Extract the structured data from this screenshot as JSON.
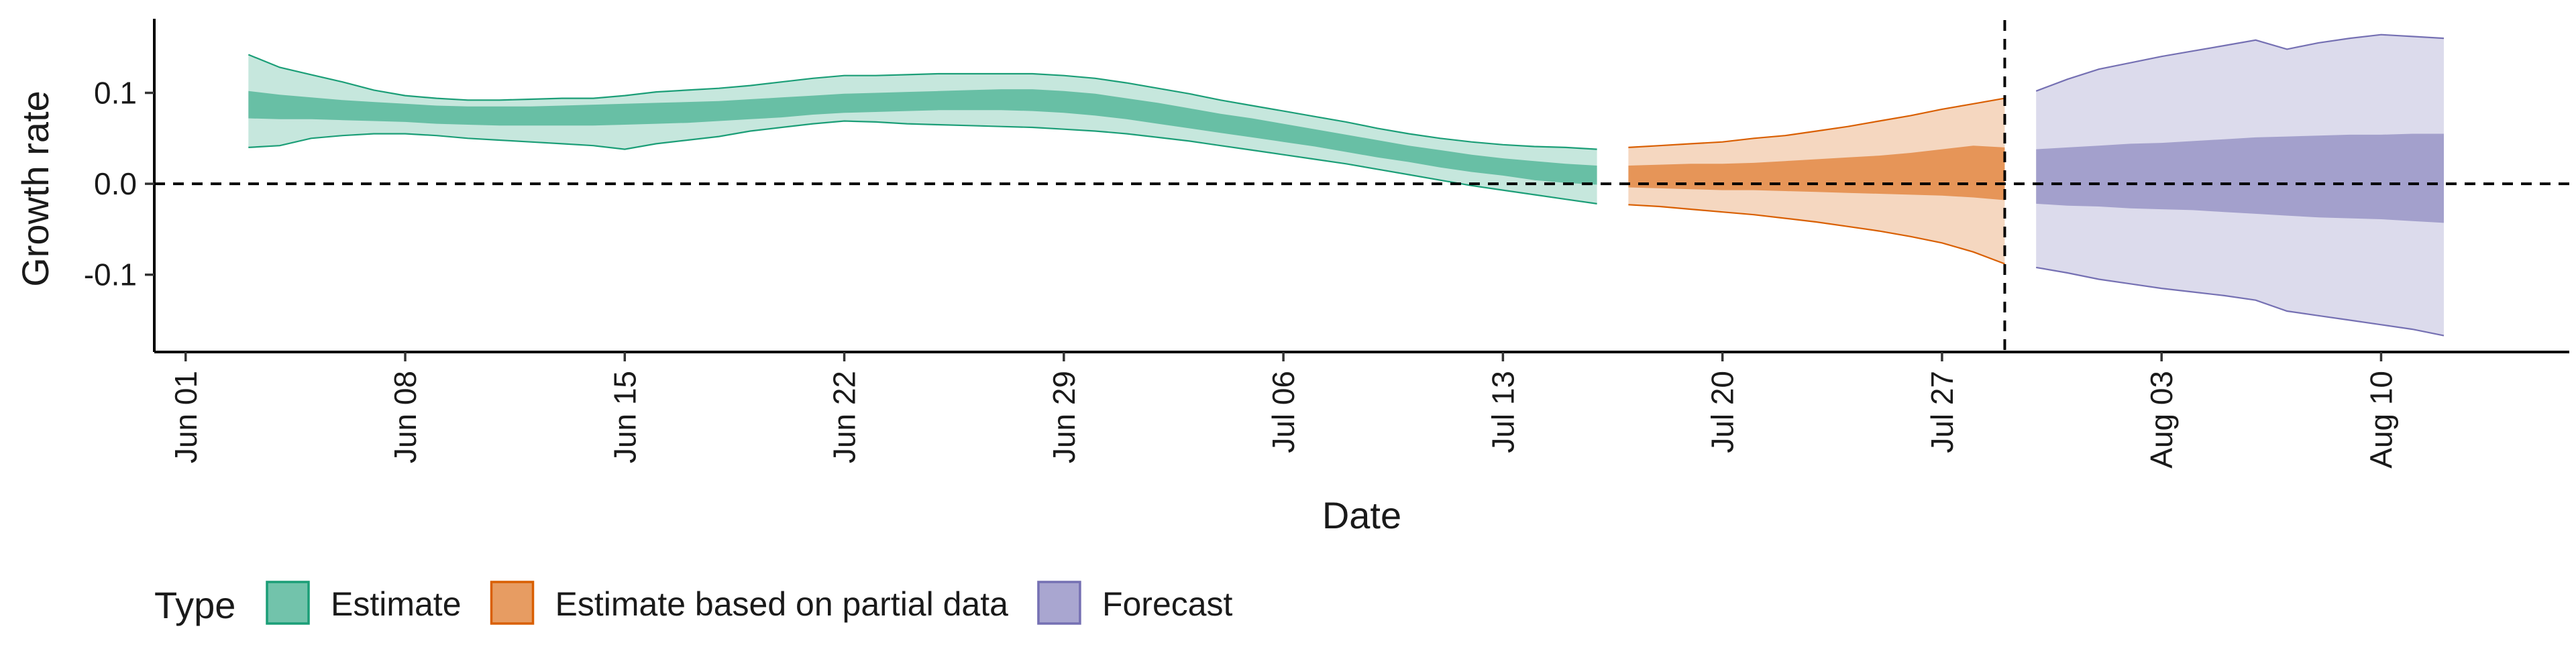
{
  "chart_data": {
    "type": "area",
    "title": "",
    "xlabel": "Date",
    "ylabel": "Growth rate",
    "x_range": [
      "2020-05-31",
      "2020-08-16"
    ],
    "ylim": [
      -0.185,
      0.18
    ],
    "y_ticks": [
      -0.1,
      0.0,
      0.1
    ],
    "y_tick_labels": [
      "-0.1",
      "0.0",
      "0.1"
    ],
    "x_ticks": [
      "2020-06-01",
      "2020-06-08",
      "2020-06-15",
      "2020-06-22",
      "2020-06-29",
      "2020-07-06",
      "2020-07-13",
      "2020-07-20",
      "2020-07-27",
      "2020-08-03",
      "2020-08-10"
    ],
    "x_tick_labels": [
      "Jun 01",
      "Jun 08",
      "Jun 15",
      "Jun 22",
      "Jun 29",
      "Jul 06",
      "Jul 13",
      "Jul 20",
      "Jul 27",
      "Aug 03",
      "Aug 10"
    ],
    "reference_lines": {
      "horizontal_y": 0.0,
      "vertical_x": "2020-07-29"
    },
    "grid": false,
    "legend_position": "bottom",
    "legend_title": "Type",
    "series": [
      {
        "name": "Estimate",
        "fill": "#1B9E77",
        "stroke": "#1B9E77",
        "points": [
          {
            "x": "2020-06-03",
            "outer_lower": 0.04,
            "inner_lower": 0.072,
            "inner_upper": 0.102,
            "outer_upper": 0.142
          },
          {
            "x": "2020-06-04",
            "outer_lower": 0.042,
            "inner_lower": 0.071,
            "inner_upper": 0.098,
            "outer_upper": 0.128
          },
          {
            "x": "2020-06-05",
            "outer_lower": 0.05,
            "inner_lower": 0.071,
            "inner_upper": 0.095,
            "outer_upper": 0.12
          },
          {
            "x": "2020-06-06",
            "outer_lower": 0.053,
            "inner_lower": 0.07,
            "inner_upper": 0.092,
            "outer_upper": 0.112
          },
          {
            "x": "2020-06-07",
            "outer_lower": 0.055,
            "inner_lower": 0.069,
            "inner_upper": 0.09,
            "outer_upper": 0.103
          },
          {
            "x": "2020-06-08",
            "outer_lower": 0.055,
            "inner_lower": 0.068,
            "inner_upper": 0.088,
            "outer_upper": 0.097
          },
          {
            "x": "2020-06-09",
            "outer_lower": 0.053,
            "inner_lower": 0.066,
            "inner_upper": 0.086,
            "outer_upper": 0.094
          },
          {
            "x": "2020-06-10",
            "outer_lower": 0.05,
            "inner_lower": 0.065,
            "inner_upper": 0.085,
            "outer_upper": 0.092
          },
          {
            "x": "2020-06-11",
            "outer_lower": 0.048,
            "inner_lower": 0.064,
            "inner_upper": 0.085,
            "outer_upper": 0.092
          },
          {
            "x": "2020-06-12",
            "outer_lower": 0.046,
            "inner_lower": 0.064,
            "inner_upper": 0.085,
            "outer_upper": 0.093
          },
          {
            "x": "2020-06-13",
            "outer_lower": 0.044,
            "inner_lower": 0.064,
            "inner_upper": 0.086,
            "outer_upper": 0.094
          },
          {
            "x": "2020-06-14",
            "outer_lower": 0.042,
            "inner_lower": 0.064,
            "inner_upper": 0.087,
            "outer_upper": 0.094
          },
          {
            "x": "2020-06-15",
            "outer_lower": 0.038,
            "inner_lower": 0.065,
            "inner_upper": 0.088,
            "outer_upper": 0.097
          },
          {
            "x": "2020-06-16",
            "outer_lower": 0.044,
            "inner_lower": 0.066,
            "inner_upper": 0.089,
            "outer_upper": 0.101
          },
          {
            "x": "2020-06-17",
            "outer_lower": 0.048,
            "inner_lower": 0.067,
            "inner_upper": 0.09,
            "outer_upper": 0.103
          },
          {
            "x": "2020-06-18",
            "outer_lower": 0.052,
            "inner_lower": 0.069,
            "inner_upper": 0.091,
            "outer_upper": 0.105
          },
          {
            "x": "2020-06-19",
            "outer_lower": 0.058,
            "inner_lower": 0.071,
            "inner_upper": 0.093,
            "outer_upper": 0.108
          },
          {
            "x": "2020-06-20",
            "outer_lower": 0.062,
            "inner_lower": 0.073,
            "inner_upper": 0.095,
            "outer_upper": 0.112
          },
          {
            "x": "2020-06-21",
            "outer_lower": 0.066,
            "inner_lower": 0.076,
            "inner_upper": 0.097,
            "outer_upper": 0.116
          },
          {
            "x": "2020-06-22",
            "outer_lower": 0.069,
            "inner_lower": 0.078,
            "inner_upper": 0.099,
            "outer_upper": 0.119
          },
          {
            "x": "2020-06-23",
            "outer_lower": 0.068,
            "inner_lower": 0.079,
            "inner_upper": 0.1,
            "outer_upper": 0.119
          },
          {
            "x": "2020-06-24",
            "outer_lower": 0.066,
            "inner_lower": 0.08,
            "inner_upper": 0.101,
            "outer_upper": 0.12
          },
          {
            "x": "2020-06-25",
            "outer_lower": 0.065,
            "inner_lower": 0.081,
            "inner_upper": 0.102,
            "outer_upper": 0.121
          },
          {
            "x": "2020-06-26",
            "outer_lower": 0.064,
            "inner_lower": 0.081,
            "inner_upper": 0.103,
            "outer_upper": 0.121
          },
          {
            "x": "2020-06-27",
            "outer_lower": 0.063,
            "inner_lower": 0.081,
            "inner_upper": 0.104,
            "outer_upper": 0.121
          },
          {
            "x": "2020-06-28",
            "outer_lower": 0.062,
            "inner_lower": 0.08,
            "inner_upper": 0.104,
            "outer_upper": 0.121
          },
          {
            "x": "2020-06-29",
            "outer_lower": 0.06,
            "inner_lower": 0.078,
            "inner_upper": 0.102,
            "outer_upper": 0.119
          },
          {
            "x": "2020-06-30",
            "outer_lower": 0.058,
            "inner_lower": 0.075,
            "inner_upper": 0.099,
            "outer_upper": 0.116
          },
          {
            "x": "2020-07-01",
            "outer_lower": 0.055,
            "inner_lower": 0.071,
            "inner_upper": 0.094,
            "outer_upper": 0.111
          },
          {
            "x": "2020-07-02",
            "outer_lower": 0.051,
            "inner_lower": 0.066,
            "inner_upper": 0.089,
            "outer_upper": 0.105
          },
          {
            "x": "2020-07-03",
            "outer_lower": 0.047,
            "inner_lower": 0.061,
            "inner_upper": 0.083,
            "outer_upper": 0.099
          },
          {
            "x": "2020-07-04",
            "outer_lower": 0.042,
            "inner_lower": 0.056,
            "inner_upper": 0.077,
            "outer_upper": 0.092
          },
          {
            "x": "2020-07-05",
            "outer_lower": 0.037,
            "inner_lower": 0.051,
            "inner_upper": 0.072,
            "outer_upper": 0.086
          },
          {
            "x": "2020-07-06",
            "outer_lower": 0.032,
            "inner_lower": 0.046,
            "inner_upper": 0.066,
            "outer_upper": 0.08
          },
          {
            "x": "2020-07-07",
            "outer_lower": 0.027,
            "inner_lower": 0.041,
            "inner_upper": 0.06,
            "outer_upper": 0.074
          },
          {
            "x": "2020-07-08",
            "outer_lower": 0.022,
            "inner_lower": 0.035,
            "inner_upper": 0.054,
            "outer_upper": 0.068
          },
          {
            "x": "2020-07-09",
            "outer_lower": 0.016,
            "inner_lower": 0.029,
            "inner_upper": 0.048,
            "outer_upper": 0.061
          },
          {
            "x": "2020-07-10",
            "outer_lower": 0.01,
            "inner_lower": 0.024,
            "inner_upper": 0.042,
            "outer_upper": 0.055
          },
          {
            "x": "2020-07-11",
            "outer_lower": 0.004,
            "inner_lower": 0.018,
            "inner_upper": 0.037,
            "outer_upper": 0.05
          },
          {
            "x": "2020-07-12",
            "outer_lower": -0.002,
            "inner_lower": 0.013,
            "inner_upper": 0.032,
            "outer_upper": 0.046
          },
          {
            "x": "2020-07-13",
            "outer_lower": -0.007,
            "inner_lower": 0.009,
            "inner_upper": 0.028,
            "outer_upper": 0.043
          },
          {
            "x": "2020-07-14",
            "outer_lower": -0.012,
            "inner_lower": 0.004,
            "inner_upper": 0.025,
            "outer_upper": 0.041
          },
          {
            "x": "2020-07-15",
            "outer_lower": -0.017,
            "inner_lower": 0.001,
            "inner_upper": 0.022,
            "outer_upper": 0.04
          },
          {
            "x": "2020-07-16",
            "outer_lower": -0.022,
            "inner_lower": -0.001,
            "inner_upper": 0.02,
            "outer_upper": 0.038
          }
        ]
      },
      {
        "name": "Estimate based on partial data",
        "fill": "#D95F02",
        "stroke": "#D95F02",
        "points": [
          {
            "x": "2020-07-17",
            "outer_lower": -0.023,
            "inner_lower": -0.004,
            "inner_upper": 0.02,
            "outer_upper": 0.04
          },
          {
            "x": "2020-07-18",
            "outer_lower": -0.025,
            "inner_lower": -0.005,
            "inner_upper": 0.021,
            "outer_upper": 0.042
          },
          {
            "x": "2020-07-19",
            "outer_lower": -0.028,
            "inner_lower": -0.006,
            "inner_upper": 0.022,
            "outer_upper": 0.044
          },
          {
            "x": "2020-07-20",
            "outer_lower": -0.031,
            "inner_lower": -0.007,
            "inner_upper": 0.022,
            "outer_upper": 0.046
          },
          {
            "x": "2020-07-21",
            "outer_lower": -0.034,
            "inner_lower": -0.007,
            "inner_upper": 0.023,
            "outer_upper": 0.05
          },
          {
            "x": "2020-07-22",
            "outer_lower": -0.038,
            "inner_lower": -0.008,
            "inner_upper": 0.025,
            "outer_upper": 0.053
          },
          {
            "x": "2020-07-23",
            "outer_lower": -0.042,
            "inner_lower": -0.009,
            "inner_upper": 0.027,
            "outer_upper": 0.058
          },
          {
            "x": "2020-07-24",
            "outer_lower": -0.047,
            "inner_lower": -0.01,
            "inner_upper": 0.029,
            "outer_upper": 0.063
          },
          {
            "x": "2020-07-25",
            "outer_lower": -0.052,
            "inner_lower": -0.011,
            "inner_upper": 0.031,
            "outer_upper": 0.069
          },
          {
            "x": "2020-07-26",
            "outer_lower": -0.058,
            "inner_lower": -0.012,
            "inner_upper": 0.034,
            "outer_upper": 0.075
          },
          {
            "x": "2020-07-27",
            "outer_lower": -0.065,
            "inner_lower": -0.013,
            "inner_upper": 0.038,
            "outer_upper": 0.082
          },
          {
            "x": "2020-07-28",
            "outer_lower": -0.075,
            "inner_lower": -0.015,
            "inner_upper": 0.042,
            "outer_upper": 0.088
          },
          {
            "x": "2020-07-29",
            "outer_lower": -0.088,
            "inner_lower": -0.018,
            "inner_upper": 0.04,
            "outer_upper": 0.094
          }
        ]
      },
      {
        "name": "Forecast",
        "fill": "#7570B3",
        "stroke": "#7570B3",
        "points": [
          {
            "x": "2020-07-30",
            "outer_lower": -0.092,
            "inner_lower": -0.022,
            "inner_upper": 0.038,
            "outer_upper": 0.102
          },
          {
            "x": "2020-07-31",
            "outer_lower": -0.098,
            "inner_lower": -0.024,
            "inner_upper": 0.04,
            "outer_upper": 0.115
          },
          {
            "x": "2020-08-01",
            "outer_lower": -0.105,
            "inner_lower": -0.025,
            "inner_upper": 0.042,
            "outer_upper": 0.126
          },
          {
            "x": "2020-08-02",
            "outer_lower": -0.11,
            "inner_lower": -0.027,
            "inner_upper": 0.044,
            "outer_upper": 0.133
          },
          {
            "x": "2020-08-03",
            "outer_lower": -0.115,
            "inner_lower": -0.028,
            "inner_upper": 0.045,
            "outer_upper": 0.14
          },
          {
            "x": "2020-08-04",
            "outer_lower": -0.119,
            "inner_lower": -0.029,
            "inner_upper": 0.047,
            "outer_upper": 0.146
          },
          {
            "x": "2020-08-05",
            "outer_lower": -0.123,
            "inner_lower": -0.031,
            "inner_upper": 0.049,
            "outer_upper": 0.152
          },
          {
            "x": "2020-08-06",
            "outer_lower": -0.128,
            "inner_lower": -0.033,
            "inner_upper": 0.051,
            "outer_upper": 0.158
          },
          {
            "x": "2020-08-07",
            "outer_lower": -0.14,
            "inner_lower": -0.035,
            "inner_upper": 0.052,
            "outer_upper": 0.148
          },
          {
            "x": "2020-08-08",
            "outer_lower": -0.145,
            "inner_lower": -0.037,
            "inner_upper": 0.053,
            "outer_upper": 0.155
          },
          {
            "x": "2020-08-09",
            "outer_lower": -0.15,
            "inner_lower": -0.038,
            "inner_upper": 0.054,
            "outer_upper": 0.16
          },
          {
            "x": "2020-08-10",
            "outer_lower": -0.155,
            "inner_lower": -0.039,
            "inner_upper": 0.054,
            "outer_upper": 0.164
          },
          {
            "x": "2020-08-11",
            "outer_lower": -0.16,
            "inner_lower": -0.041,
            "inner_upper": 0.055,
            "outer_upper": 0.162
          },
          {
            "x": "2020-08-12",
            "outer_lower": -0.167,
            "inner_lower": -0.043,
            "inner_upper": 0.055,
            "outer_upper": 0.16
          }
        ]
      }
    ]
  }
}
